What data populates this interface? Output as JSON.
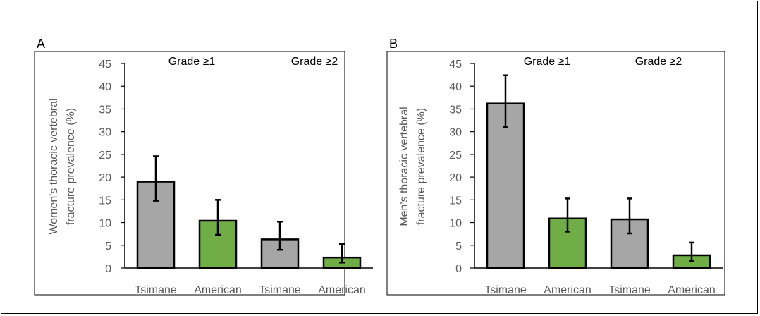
{
  "chart_data": [
    {
      "type": "bar",
      "panel": "A",
      "ylabel": "Women's thoracic vertebral fracture prevalence (%)",
      "ylabel_lines": [
        "Women's thoracic vertebral",
        "fracture prevalence (%)"
      ],
      "ylim": [
        0,
        45
      ],
      "yticks": [
        0,
        5,
        10,
        15,
        20,
        25,
        30,
        35,
        40,
        45
      ],
      "groups": [
        "Grade ≥1",
        "Grade ≥2"
      ],
      "categories": [
        "Tsimane",
        "American",
        "Tsimane",
        "American"
      ],
      "values": [
        19.0,
        10.4,
        6.3,
        2.3
      ],
      "error_low": [
        14.8,
        7.3,
        4.0,
        1.2
      ],
      "error_high": [
        24.6,
        15.0,
        10.2,
        5.3
      ],
      "bar_colors": [
        "#a6a6a6",
        "#70ad47",
        "#a6a6a6",
        "#70ad47"
      ],
      "grid": false
    },
    {
      "type": "bar",
      "panel": "B",
      "ylabel": "Men's thoracic vertebral fracture prevalence (%)",
      "ylabel_lines": [
        "Men's thoracic vertebral",
        "fracture prevalence (%)"
      ],
      "ylim": [
        0,
        45
      ],
      "yticks": [
        0,
        5,
        10,
        15,
        20,
        25,
        30,
        35,
        40,
        45
      ],
      "groups": [
        "Grade ≥1",
        "Grade ≥2"
      ],
      "categories": [
        "Tsimane",
        "American",
        "Tsimane",
        "American"
      ],
      "values": [
        36.2,
        10.9,
        10.7,
        2.8
      ],
      "error_low": [
        31.0,
        8.0,
        7.6,
        1.5
      ],
      "error_high": [
        42.4,
        15.3,
        15.3,
        5.6
      ],
      "bar_colors": [
        "#a6a6a6",
        "#70ad47",
        "#a6a6a6",
        "#70ad47"
      ],
      "grid": false
    }
  ]
}
